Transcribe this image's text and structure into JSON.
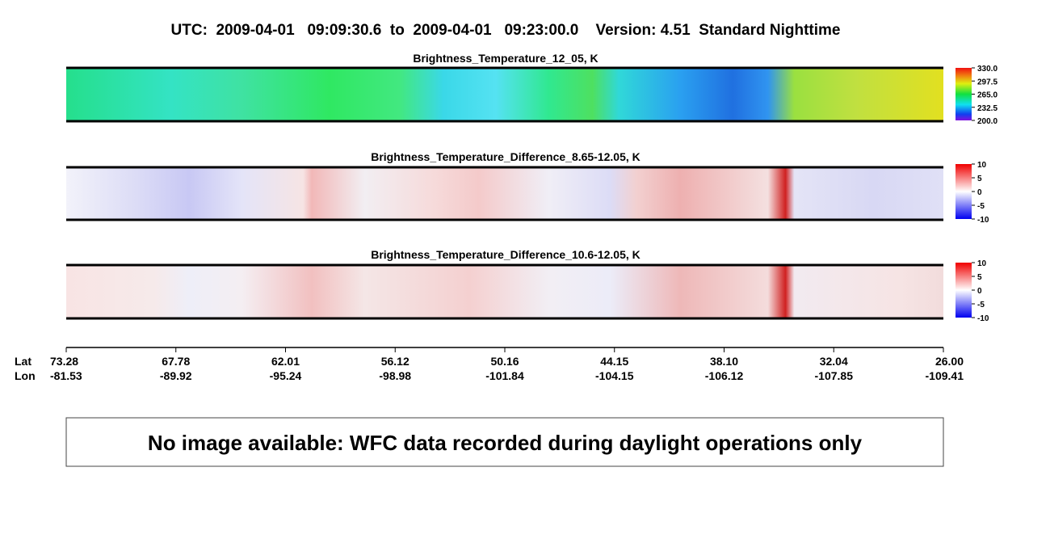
{
  "title": "UTC:  2009-04-01   09:09:30.6  to  2009-04-01   09:23:00.0    Version: 4.51  Standard Nighttime",
  "panels": [
    {
      "title": "Brightness_Temperature_12_05, K",
      "colorbar": {
        "lim": [
          200,
          330
        ],
        "ticks": [
          {
            "value": 330,
            "label": "330.0"
          },
          {
            "value": 297.5,
            "label": "297.5"
          },
          {
            "value": 265,
            "label": "265.0"
          },
          {
            "value": 232.5,
            "label": "232.5"
          },
          {
            "value": 200,
            "label": "200.0"
          }
        ]
      }
    },
    {
      "title": "Brightness_Temperature_Difference_8.65-12.05, K",
      "colorbar": {
        "lim": [
          -10,
          10
        ],
        "ticks": [
          10,
          5,
          0,
          -5,
          -10
        ]
      }
    },
    {
      "title": "Brightness_Temperature_Difference_10.6-12.05, K",
      "colorbar": {
        "lim": [
          -10,
          10
        ],
        "ticks": [
          10,
          5,
          0,
          -5,
          -10
        ]
      }
    }
  ],
  "axis": {
    "row_labels": [
      "Lat",
      "Lon"
    ],
    "lat": [
      "73.28",
      "67.78",
      "62.01",
      "56.12",
      "50.16",
      "44.15",
      "38.10",
      "32.04",
      "26.00"
    ],
    "lon": [
      "-81.53",
      "-89.92",
      "-95.24",
      "-98.98",
      "-101.84",
      "-104.15",
      "-106.12",
      "-107.85",
      "-109.41"
    ]
  },
  "message": "No image available: WFC data recorded during daylight operations only"
}
